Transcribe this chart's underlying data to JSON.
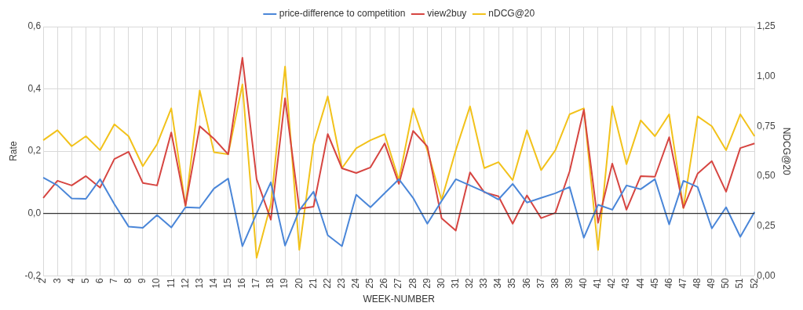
{
  "chart_data": {
    "type": "line",
    "xlabel": "WEEK-NUMBER",
    "ylabel": "Rate",
    "y2label": "NDCG@20",
    "categories": [
      "2",
      "3",
      "4",
      "5",
      "6",
      "7",
      "8",
      "9",
      "10",
      "11",
      "12",
      "13",
      "14",
      "15",
      "16",
      "17",
      "18",
      "19",
      "20",
      "21",
      "22",
      "23",
      "24",
      "25",
      "26",
      "27",
      "28",
      "29",
      "30",
      "31",
      "32",
      "33",
      "34",
      "35",
      "36",
      "37",
      "38",
      "39",
      "40",
      "41",
      "42",
      "43",
      "44",
      "45",
      "46",
      "47",
      "48",
      "49",
      "50",
      "51",
      "52"
    ],
    "series": [
      {
        "name": "price-difference to competition",
        "color": "#4a86d8",
        "values": [
          0.115,
          0.09,
          0.048,
          0.047,
          0.11,
          0.03,
          -0.042,
          -0.046,
          -0.005,
          -0.045,
          0.02,
          0.018,
          0.08,
          0.112,
          -0.105,
          0.0,
          0.1,
          -0.103,
          0.01,
          0.07,
          -0.07,
          -0.105,
          0.06,
          0.02,
          0.065,
          0.11,
          0.05,
          -0.033,
          0.04,
          0.11,
          0.09,
          0.07,
          0.045,
          0.095,
          0.035,
          0.05,
          0.065,
          0.085,
          -0.078,
          0.028,
          0.012,
          0.09,
          0.078,
          0.11,
          -0.035,
          0.105,
          0.085,
          -0.048,
          0.02,
          -0.075,
          0.005
        ]
      },
      {
        "name": "view2buy",
        "color": "#d64541",
        "values": [
          0.05,
          0.105,
          0.09,
          0.12,
          0.083,
          0.175,
          0.198,
          0.098,
          0.09,
          0.26,
          0.025,
          0.28,
          0.24,
          0.19,
          0.5,
          0.11,
          -0.02,
          0.37,
          0.015,
          0.022,
          0.255,
          0.145,
          0.13,
          0.148,
          0.225,
          0.095,
          0.265,
          0.215,
          -0.015,
          -0.055,
          0.132,
          0.068,
          0.055,
          -0.033,
          0.058,
          -0.015,
          0.002,
          0.135,
          0.333,
          -0.03,
          0.16,
          0.012,
          0.12,
          0.118,
          0.245,
          0.018,
          0.128,
          0.168,
          0.07,
          0.21,
          0.225
        ]
      },
      {
        "name": "nDCG@20",
        "color": "#f2c21b",
        "axis": "y2",
        "values": [
          0.68,
          0.73,
          0.65,
          0.7,
          0.63,
          0.76,
          0.7,
          0.55,
          0.66,
          0.84,
          0.35,
          0.93,
          0.62,
          0.61,
          0.96,
          0.09,
          0.36,
          1.05,
          0.13,
          0.66,
          0.9,
          0.54,
          0.64,
          0.68,
          0.71,
          0.48,
          0.84,
          0.63,
          0.38,
          0.63,
          0.85,
          0.54,
          0.57,
          0.48,
          0.73,
          0.53,
          0.63,
          0.81,
          0.84,
          0.13,
          0.85,
          0.56,
          0.78,
          0.7,
          0.81,
          0.34,
          0.8,
          0.75,
          0.63,
          0.81,
          0.7
        ]
      }
    ],
    "ylim": [
      -0.2,
      0.6
    ],
    "yticks": [
      {
        "value": -0.2,
        "label": "-0,2"
      },
      {
        "value": 0,
        "label": "0,0"
      },
      {
        "value": 0.2,
        "label": "0,2"
      },
      {
        "value": 0.4,
        "label": "0,4"
      },
      {
        "value": 0.6,
        "label": "0,6"
      }
    ],
    "y2lim": [
      0,
      1.25
    ],
    "y2ticks": [
      {
        "value": 0,
        "label": "0,00"
      },
      {
        "value": 0.25,
        "label": "0,25"
      },
      {
        "value": 0.5,
        "label": "0,50"
      },
      {
        "value": 0.75,
        "label": "0,75"
      },
      {
        "value": 1,
        "label": "1,00"
      },
      {
        "value": 1.25,
        "label": "1,25"
      }
    ],
    "ref_lines": [
      {
        "axis": "y",
        "value": 0,
        "color": "#333333"
      }
    ],
    "grid": true,
    "legend": "top",
    "marker": "none",
    "line_style": "solid"
  }
}
